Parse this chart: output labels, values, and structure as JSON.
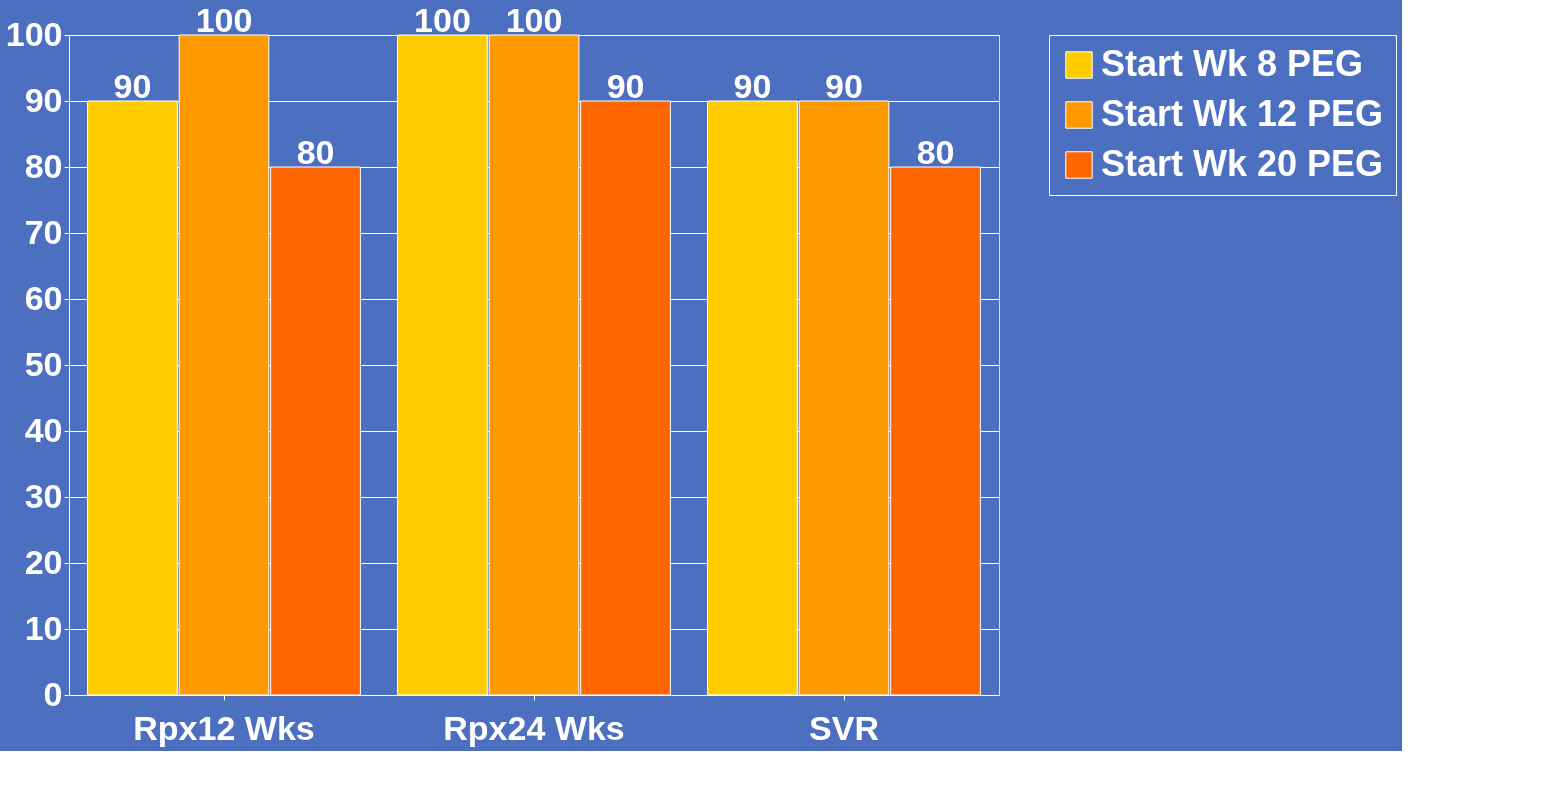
{
  "chart_data": {
    "type": "bar",
    "categories": [
      "Rpx12 Wks",
      "Rpx24 Wks",
      "SVR"
    ],
    "series": [
      {
        "name": "Start Wk 8 PEG",
        "color": "#ffcc00",
        "values": [
          90,
          100,
          90
        ]
      },
      {
        "name": "Start Wk 12 PEG",
        "color": "#ff9900",
        "values": [
          100,
          100,
          90
        ]
      },
      {
        "name": "Start Wk 20 PEG",
        "color": "#ff6600",
        "values": [
          80,
          90,
          80
        ]
      }
    ],
    "ylim": [
      0,
      100
    ],
    "yticks": [
      0,
      10,
      20,
      30,
      40,
      50,
      60,
      70,
      80,
      90,
      100
    ],
    "grid": "y",
    "legend": "right",
    "data_labels": true
  }
}
